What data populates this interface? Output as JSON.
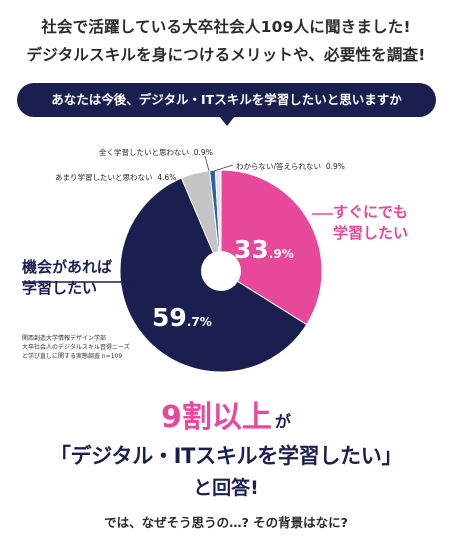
{
  "header": {
    "line1": "社会で活躍している大卒社会人109人に聞きました!",
    "line2": "デジタルスキルを身につけるメリットや、必要性を調査!"
  },
  "question_banner": "あなたは今後、デジタル・ITスキルを学習したいと思いますか",
  "colors": {
    "pink": "#e8489a",
    "navy": "#1b1f4f",
    "gray": "#c4c4c4",
    "blue": "#2e5fa8",
    "light_gray": "#e3e3e3"
  },
  "chart_data": {
    "type": "pie",
    "slices": [
      {
        "label": "すぐにでも学習したい",
        "value": 33.9
      },
      {
        "label": "機会があれば学習したい",
        "value": 59.7
      },
      {
        "label": "あまり学習したいと思わない",
        "value": 4.6
      },
      {
        "label": "全く学習したいと思わない",
        "value": 0.9
      },
      {
        "label": "わからない/答えられない",
        "value": 0.9
      }
    ]
  },
  "labels": {
    "pink_line1": "すぐにでも",
    "pink_line2": "学習したい",
    "pink_int": "33",
    "pink_dec": ".9%",
    "navy_line1": "機会があれば",
    "navy_line2": "学習したい",
    "navy_int": "59",
    "navy_dec": ".7%",
    "amari": "あまり学習したいと思わない",
    "amari_val": "4.6%",
    "mattaku": "全く学習したいと思わない",
    "mattaku_val": "0.9%",
    "wakaranai": "わからない/答えられない",
    "wakaranai_val": "0.9%"
  },
  "source": {
    "line1": "関西創造大学情報デザイン学部",
    "line2": "大卒社会人のデジタルスキル習得ニーズ",
    "line3": "と学び直しに関する実態調査 n=109"
  },
  "conclusion": {
    "big": "9割以上",
    "ga": "が",
    "quote": "「デジタル・ITスキルを学習したい」",
    "answered": "と回答!",
    "question": "では、なぜそう思うの…? その背景はなに?"
  }
}
